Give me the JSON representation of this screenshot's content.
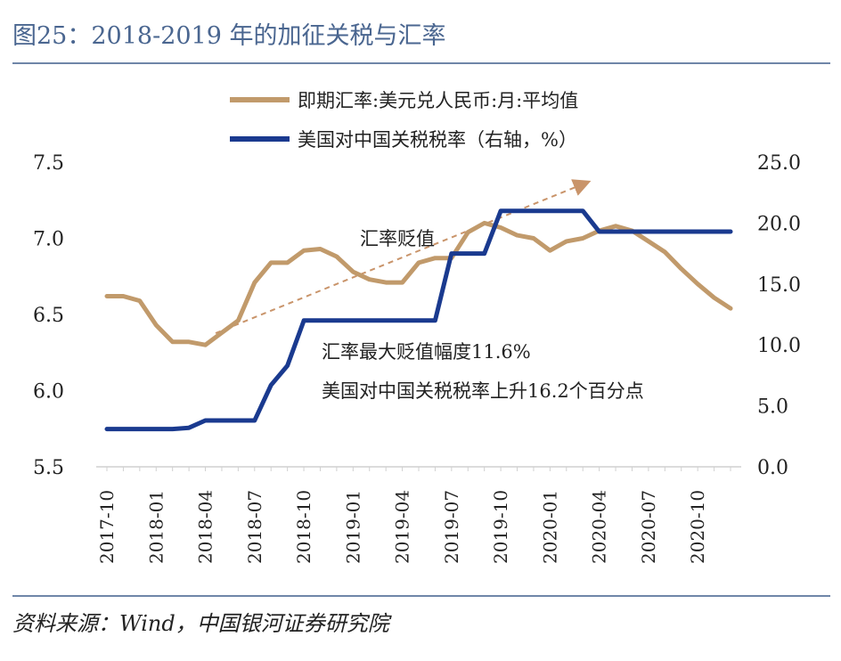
{
  "title": "图25：2018-2019 年的加征关税与汇率",
  "source": "资料来源：Wind，中国银河证券研究院",
  "chart_data": {
    "type": "line",
    "categories": [
      "2017-10",
      "2017-11",
      "2017-12",
      "2018-01",
      "2018-02",
      "2018-03",
      "2018-04",
      "2018-05",
      "2018-06",
      "2018-07",
      "2018-08",
      "2018-09",
      "2018-10",
      "2018-11",
      "2018-12",
      "2019-01",
      "2019-02",
      "2019-03",
      "2019-04",
      "2019-05",
      "2019-06",
      "2019-07",
      "2019-08",
      "2019-09",
      "2019-10",
      "2019-11",
      "2019-12",
      "2020-01",
      "2020-02",
      "2020-03",
      "2020-04",
      "2020-05",
      "2020-06",
      "2020-07",
      "2020-08",
      "2020-09",
      "2020-10",
      "2020-11",
      "2020-12"
    ],
    "x_tick_labels": [
      "2017-10",
      "2018-01",
      "2018-04",
      "2018-07",
      "2018-10",
      "2019-01",
      "2019-04",
      "2019-07",
      "2019-10",
      "2020-01",
      "2020-04",
      "2020-07",
      "2020-10"
    ],
    "series": [
      {
        "name": "即期汇率:美元兑人民币:月:平均值",
        "axis": "left",
        "color": "#c19a6b",
        "values": [
          6.62,
          6.62,
          6.59,
          6.43,
          6.32,
          6.32,
          6.3,
          6.38,
          6.46,
          6.71,
          6.84,
          6.84,
          6.92,
          6.93,
          6.88,
          6.78,
          6.73,
          6.71,
          6.71,
          6.84,
          6.87,
          6.87,
          7.04,
          7.1,
          7.07,
          7.02,
          7.0,
          6.92,
          6.98,
          7.0,
          7.05,
          7.08,
          7.05,
          6.98,
          6.91,
          6.8,
          6.7,
          6.61,
          6.54
        ]
      },
      {
        "name": "美国对中国关税税率（右轴，%）",
        "axis": "right",
        "color": "#1a3a8f",
        "values": [
          3.1,
          3.1,
          3.1,
          3.1,
          3.1,
          3.2,
          3.8,
          3.8,
          3.8,
          3.8,
          6.7,
          8.3,
          12.0,
          12.0,
          12.0,
          12.0,
          12.0,
          12.0,
          12.0,
          12.0,
          12.0,
          17.5,
          17.5,
          17.5,
          21.0,
          21.0,
          21.0,
          21.0,
          21.0,
          21.0,
          19.3,
          19.3,
          19.3,
          19.3,
          19.3,
          19.3,
          19.3,
          19.3,
          19.3
        ]
      }
    ],
    "left_axis": {
      "ylim": [
        5.5,
        7.5
      ],
      "ticks": [
        "7.5",
        "7.0",
        "6.5",
        "6.0",
        "5.5"
      ]
    },
    "right_axis": {
      "ylim": [
        0,
        25
      ],
      "ticks": [
        "25.0",
        "20.0",
        "15.0",
        "10.0",
        "5.0",
        "0.0"
      ]
    },
    "legend": [
      "即期汇率:美元兑人民币:月:平均值",
      "美国对中国关税税率（右轴，%）"
    ],
    "annotations": {
      "arrow_label": "汇率贬值",
      "note1": "汇率最大贬值幅度11.6%",
      "note2": "美国对中国关税税率上升16.2个百分点"
    }
  }
}
